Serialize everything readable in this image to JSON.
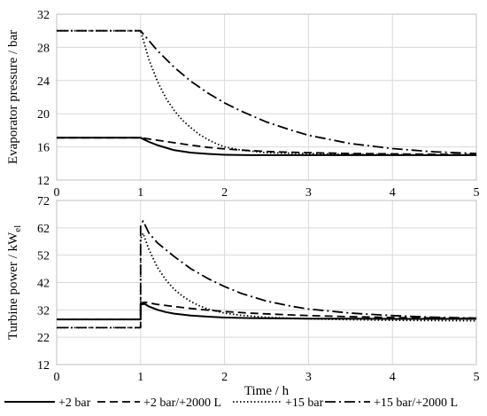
{
  "chart_data": [
    {
      "type": "line",
      "ylabel": "Evaporator pressure / bar",
      "xlim": [
        0,
        5
      ],
      "ylim": [
        12,
        32
      ],
      "x_ticks": [
        "0",
        "1",
        "2",
        "3",
        "4",
        "5"
      ],
      "y_ticks": [
        "12",
        "16",
        "20",
        "24",
        "28",
        "32"
      ],
      "grid": true,
      "series": [
        {
          "name": "+2 bar",
          "style": "solid",
          "x": [
            0,
            1,
            1.1,
            1.2,
            1.3,
            1.4,
            1.6,
            1.8,
            2.0,
            2.3,
            2.6,
            3.0,
            3.5,
            4.0,
            4.5,
            5.0
          ],
          "y": [
            17.1,
            17.1,
            16.6,
            16.2,
            15.9,
            15.6,
            15.3,
            15.15,
            15.05,
            15.0,
            15.0,
            15.0,
            15.0,
            15.0,
            15.0,
            15.0
          ]
        },
        {
          "name": "+2 bar/+2000 L",
          "style": "dash",
          "x": [
            0,
            1,
            1.2,
            1.4,
            1.6,
            1.8,
            2.0,
            2.3,
            2.6,
            3.0,
            3.5,
            4.0,
            4.5,
            5.0
          ],
          "y": [
            17.1,
            17.1,
            16.8,
            16.5,
            16.2,
            15.95,
            15.75,
            15.55,
            15.4,
            15.3,
            15.2,
            15.15,
            15.1,
            15.05
          ]
        },
        {
          "name": "+15 bar",
          "style": "dot",
          "x": [
            0,
            1,
            1.1,
            1.2,
            1.3,
            1.4,
            1.5,
            1.6,
            1.7,
            1.8,
            1.9,
            2.0,
            2.2,
            2.5,
            3.0,
            3.5,
            4.0,
            5.0
          ],
          "y": [
            30.0,
            30.0,
            26.5,
            23.9,
            21.9,
            20.4,
            19.2,
            18.3,
            17.5,
            16.9,
            16.4,
            16.0,
            15.6,
            15.3,
            15.2,
            15.1,
            15.05,
            15.0
          ]
        },
        {
          "name": "+15 bar/+2000 L",
          "style": "dashdot",
          "x": [
            0,
            1,
            1.2,
            1.4,
            1.6,
            1.8,
            2.0,
            2.2,
            2.5,
            2.8,
            3.0,
            3.5,
            4.0,
            4.5,
            5.0
          ],
          "y": [
            30.0,
            30.0,
            27.6,
            25.6,
            23.9,
            22.5,
            21.3,
            20.3,
            19.0,
            18.0,
            17.4,
            16.4,
            15.8,
            15.4,
            15.2
          ]
        }
      ]
    },
    {
      "type": "line",
      "ylabel": "Turbine power / kW",
      "ylabel_subscript": "el",
      "xlabel": "Time / h",
      "xlim": [
        0,
        5
      ],
      "ylim": [
        12,
        72
      ],
      "x_ticks": [
        "0",
        "1",
        "2",
        "3",
        "4",
        "5"
      ],
      "y_ticks": [
        "12",
        "22",
        "32",
        "42",
        "52",
        "62",
        "72"
      ],
      "grid": true,
      "series": [
        {
          "name": "+2 bar",
          "style": "solid",
          "x": [
            0,
            1,
            1.0,
            1.05,
            1.1,
            1.2,
            1.3,
            1.4,
            1.6,
            1.8,
            2.0,
            2.3,
            2.6,
            3.0,
            3.5,
            4.0,
            4.5,
            5.0
          ],
          "y": [
            28.5,
            28.5,
            34.0,
            34.2,
            33.2,
            32.0,
            31.2,
            30.6,
            29.9,
            29.5,
            29.2,
            29.0,
            28.9,
            28.8,
            28.8,
            28.7,
            28.7,
            28.7
          ]
        },
        {
          "name": "+2 bar/+2000 L",
          "style": "dash",
          "x": [
            0,
            1,
            1.0,
            1.05,
            1.2,
            1.4,
            1.6,
            1.8,
            2.0,
            2.3,
            2.6,
            3.0,
            3.5,
            4.0,
            4.5,
            5.0
          ],
          "y": [
            28.5,
            28.5,
            34.5,
            34.8,
            34.0,
            33.2,
            32.5,
            31.9,
            31.4,
            30.8,
            30.4,
            29.9,
            29.5,
            29.2,
            29.0,
            28.9
          ]
        },
        {
          "name": "+15 bar",
          "style": "dot",
          "x": [
            0,
            1,
            1.0,
            1.03,
            1.1,
            1.2,
            1.3,
            1.4,
            1.5,
            1.6,
            1.7,
            1.8,
            2.0,
            2.2,
            2.5,
            3.0,
            3.5,
            4.0,
            5.0
          ],
          "y": [
            25.5,
            25.5,
            58.0,
            60.0,
            54.0,
            47.5,
            43.0,
            39.5,
            37.0,
            35.0,
            33.5,
            32.3,
            30.8,
            30.0,
            29.3,
            28.7,
            28.4,
            28.2,
            28.0
          ]
        },
        {
          "name": "+15 bar/+2000 L",
          "style": "dashdot",
          "x": [
            0,
            1,
            1.0,
            1.03,
            1.1,
            1.2,
            1.4,
            1.6,
            1.8,
            2.0,
            2.2,
            2.5,
            2.8,
            3.0,
            3.5,
            4.0,
            4.5,
            5.0
          ],
          "y": [
            25.5,
            25.5,
            63.0,
            64.5,
            60.0,
            56.5,
            51.5,
            47.0,
            43.5,
            40.5,
            38.0,
            35.2,
            33.3,
            32.3,
            30.8,
            29.9,
            29.3,
            29.0
          ]
        }
      ]
    }
  ],
  "legend": {
    "placement": "bottom",
    "items": [
      "+2 bar",
      "+2 bar/+2000 L",
      "+15 bar",
      "+15 bar/+2000 L"
    ]
  }
}
